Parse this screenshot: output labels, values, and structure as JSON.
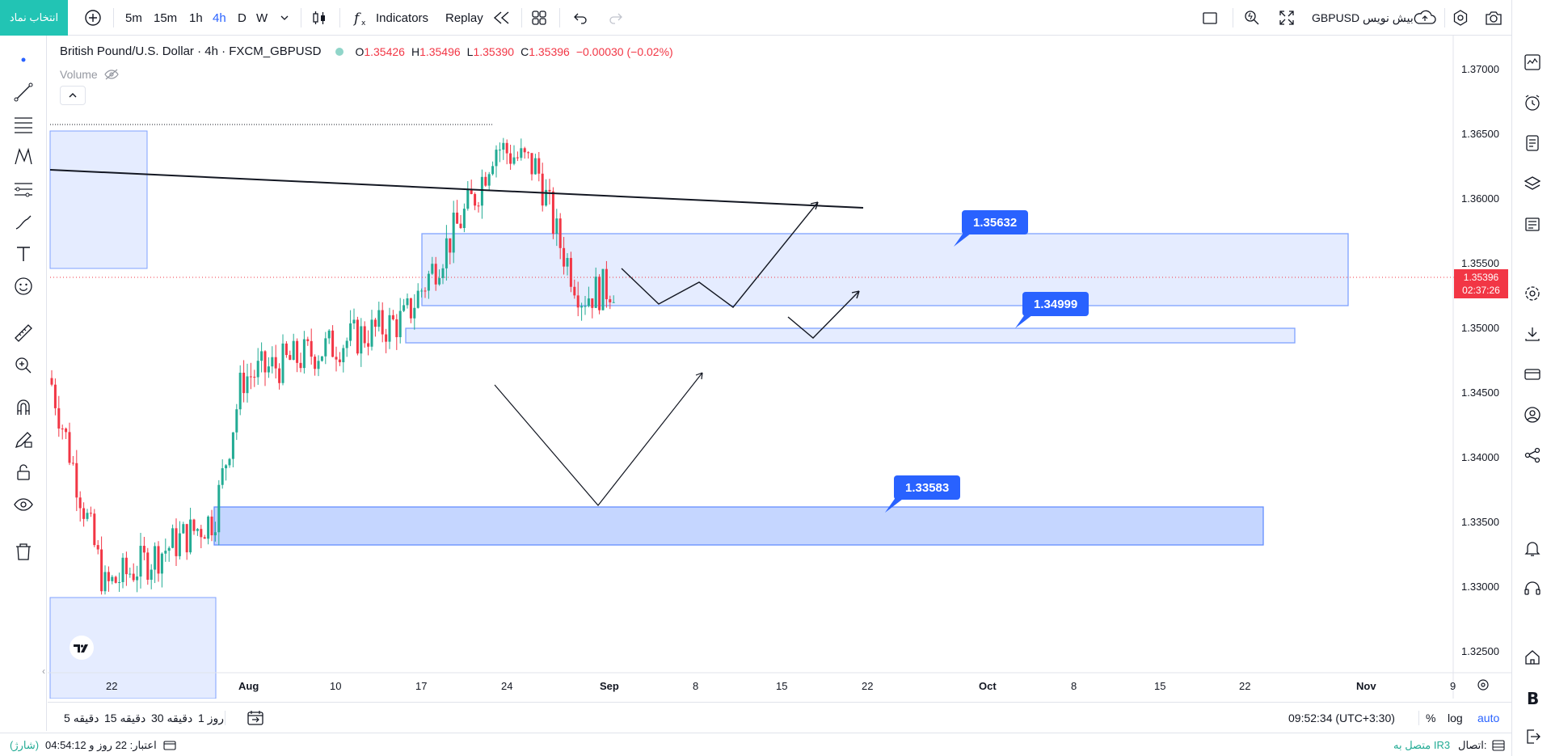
{
  "topbar": {
    "symbol_button": "انتخاب نماد",
    "intervals": [
      "5m",
      "15m",
      "1h",
      "4h",
      "D",
      "W"
    ],
    "active_interval": "4h",
    "indicators_label": "Indicators",
    "replay_label": "Replay",
    "symbol_label": "GBPUSD بیش نویس"
  },
  "legend": {
    "title": "British Pound/U.S. Dollar · 4h · FXCM_GBPUSD",
    "open_key": "O",
    "open": "1.35426",
    "high_key": "H",
    "high": "1.35496",
    "low_key": "L",
    "low": "1.35390",
    "close_key": "C",
    "close": "1.35396",
    "change": "−0.00030 (−0.02%)",
    "volume_label": "Volume"
  },
  "price_axis": {
    "ticks": [
      "1.37000",
      "1.36500",
      "1.36000",
      "1.35500",
      "1.35000",
      "1.34500",
      "1.34000",
      "1.33500",
      "1.33000",
      "1.32500"
    ],
    "last_price": "1.35396",
    "countdown": "02:37:26"
  },
  "time_axis": {
    "ticks": [
      "22",
      "Aug",
      "10",
      "17",
      "24",
      "Sep",
      "8",
      "15",
      "22",
      "Oct",
      "8",
      "15",
      "22",
      "Nov",
      "9"
    ]
  },
  "levels": {
    "upper": "1.35632",
    "middle": "1.34999",
    "lower": "1.33583"
  },
  "rangebar": {
    "ranges": [
      "5 دقیقه",
      "15 دقیقه",
      "30 دقیقه",
      "1 روز"
    ],
    "clock": "09:52:34 (UTC+3:30)",
    "percent": "%",
    "log": "log",
    "auto": "auto"
  },
  "statusbar": {
    "credit": "اعتبار: 22 روز و 04:54:12",
    "charge": "(شارژ)",
    "connection": "اتصال:",
    "connection_status": "متصل به IR3"
  },
  "colors": {
    "accent": "#2962ff",
    "up": "#22ab94",
    "down": "#f23645",
    "zone_fill": "#dbe5ff",
    "brand": "#22c4b4"
  },
  "chart_data": {
    "type": "candlestick",
    "symbol": "GBPUSD",
    "interval": "4h",
    "ylim": [
      1.3225,
      1.3725
    ],
    "last_price": 1.35396,
    "zones": [
      {
        "label": "1.35632",
        "top": 1.3574,
        "bottom": 1.3518
      },
      {
        "label": "1.34999",
        "top": 1.3501,
        "bottom": 1.349
      },
      {
        "label": "1.33583",
        "top": 1.3362,
        "bottom": 1.3333
      }
    ],
    "key_points": [
      {
        "date": "Jul 22",
        "price": 1.346
      },
      {
        "date": "Jul 28",
        "price": 1.328
      },
      {
        "date": "Aug 1",
        "price": 1.334
      },
      {
        "date": "Aug 5",
        "price": 1.346
      },
      {
        "date": "Aug 15",
        "price": 1.351
      },
      {
        "date": "Aug 22",
        "price": 1.362
      },
      {
        "date": "Aug 23",
        "price": 1.366
      },
      {
        "date": "Aug 27",
        "price": 1.364
      },
      {
        "date": "Aug 29",
        "price": 1.358
      },
      {
        "date": "Aug 31",
        "price": 1.353
      },
      {
        "date": "Sep 1",
        "price": 1.35396
      }
    ]
  }
}
